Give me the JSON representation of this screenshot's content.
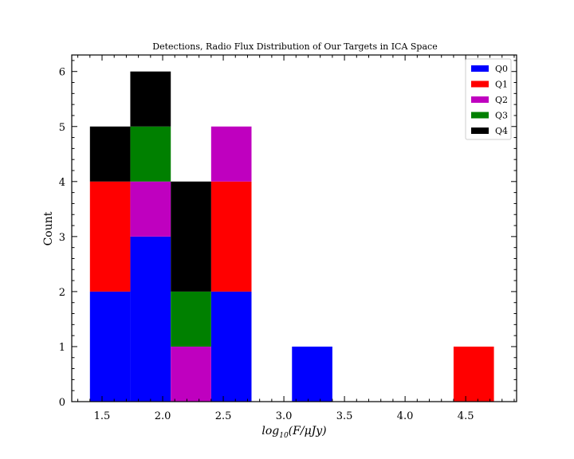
{
  "chart_data": {
    "type": "bar",
    "stacked": true,
    "title": "Detections, Radio Flux Distribution of Our Targets in ICA Space",
    "xlabel": "log10(F/μJy)",
    "ylabel": "Count",
    "xlim": [
      1.25,
      4.92
    ],
    "ylim": [
      0,
      6.3
    ],
    "bin_edges": [
      1.4,
      1.733,
      2.067,
      2.4,
      2.733,
      3.067,
      3.4,
      3.733,
      4.067,
      4.4,
      4.733
    ],
    "xticks": [
      1.5,
      2.0,
      2.5,
      3.0,
      3.5,
      4.0,
      4.5
    ],
    "xtick_labels": [
      "1.5",
      "2.0",
      "2.5",
      "3.0",
      "3.5",
      "4.0",
      "4.5"
    ],
    "yticks": [
      0,
      1,
      2,
      3,
      4,
      5,
      6
    ],
    "ytick_labels": [
      "0",
      "1",
      "2",
      "3",
      "4",
      "5",
      "6"
    ],
    "grid": false,
    "legend_position": "top-right",
    "series": [
      {
        "name": "Q0",
        "color": "#0000ff",
        "values": [
          2,
          3,
          0,
          2,
          0,
          1,
          0,
          0,
          0,
          0
        ]
      },
      {
        "name": "Q1",
        "color": "#ff0000",
        "values": [
          2,
          0,
          0,
          2,
          0,
          0,
          0,
          0,
          0,
          1
        ]
      },
      {
        "name": "Q2",
        "color": "#bf00bf",
        "values": [
          0,
          1,
          1,
          1,
          0,
          0,
          0,
          0,
          0,
          0
        ]
      },
      {
        "name": "Q3",
        "color": "#008000",
        "values": [
          0,
          1,
          1,
          0,
          0,
          0,
          0,
          0,
          0,
          0
        ]
      },
      {
        "name": "Q4",
        "color": "#000000",
        "values": [
          1,
          1,
          2,
          0,
          0,
          0,
          0,
          0,
          0,
          0
        ]
      }
    ]
  }
}
